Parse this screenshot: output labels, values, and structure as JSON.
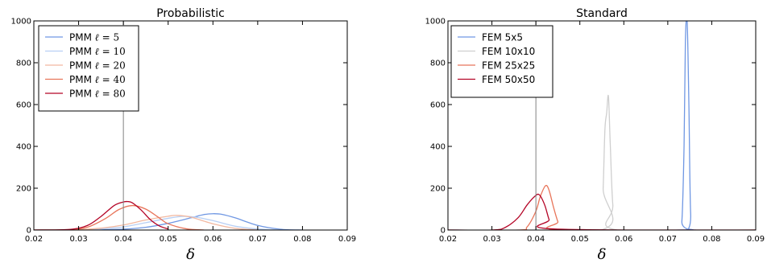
{
  "chart_data": [
    {
      "type": "line",
      "title": "Probabilistic",
      "xlabel": "δ",
      "ylabel": "",
      "xlim": [
        0.02,
        0.09
      ],
      "ylim": [
        0,
        1000
      ],
      "xticks": [
        "0.02",
        "0.03",
        "0.04",
        "0.05",
        "0.06",
        "0.07",
        "0.08",
        "0.09"
      ],
      "yticks": [
        "0",
        "200",
        "400",
        "600",
        "800",
        "1000"
      ],
      "grid": false,
      "legend_position": "top-left",
      "reference_line_x": 0.04,
      "reference_line_color": "#808080",
      "series": [
        {
          "name": "PMM ℓ = 5",
          "color": "#6f97e3",
          "x": [
            0.02,
            0.03,
            0.035,
            0.04,
            0.045,
            0.05,
            0.055,
            0.058,
            0.06,
            0.062,
            0.065,
            0.07,
            0.075,
            0.08
          ],
          "y": [
            0,
            0,
            1,
            4,
            13,
            32,
            58,
            74,
            78,
            75,
            58,
            22,
            4,
            0
          ]
        },
        {
          "name": "PMM ℓ = 10",
          "color": "#b8cff4",
          "x": [
            0.02,
            0.03,
            0.035,
            0.04,
            0.045,
            0.05,
            0.053,
            0.056,
            0.06,
            0.065,
            0.07,
            0.075
          ],
          "y": [
            0,
            1,
            5,
            15,
            35,
            56,
            65,
            62,
            45,
            18,
            5,
            0
          ]
        },
        {
          "name": "PMM ℓ = 20",
          "color": "#f2b8a0",
          "x": [
            0.02,
            0.03,
            0.035,
            0.04,
            0.045,
            0.05,
            0.052,
            0.055,
            0.06,
            0.065,
            0.07
          ],
          "y": [
            0,
            2,
            9,
            24,
            48,
            66,
            70,
            62,
            30,
            8,
            0
          ]
        },
        {
          "name": "PMM ℓ = 40",
          "color": "#e8755a",
          "x": [
            0.02,
            0.028,
            0.032,
            0.036,
            0.039,
            0.042,
            0.045,
            0.048,
            0.05,
            0.054,
            0.058
          ],
          "y": [
            0,
            2,
            14,
            55,
            98,
            117,
            100,
            58,
            30,
            6,
            0
          ]
        },
        {
          "name": "PMM ℓ = 80",
          "color": "#b40426",
          "x": [
            0.02,
            0.028,
            0.032,
            0.035,
            0.038,
            0.04,
            0.041,
            0.042,
            0.044,
            0.046,
            0.048,
            0.05
          ],
          "y": [
            0,
            3,
            22,
            65,
            118,
            134,
            136,
            130,
            95,
            50,
            20,
            5
          ]
        }
      ]
    },
    {
      "type": "line",
      "title": "Standard",
      "xlabel": "δ",
      "ylabel": "",
      "xlim": [
        0.02,
        0.09
      ],
      "ylim": [
        0,
        1000
      ],
      "xticks": [
        "0.02",
        "0.03",
        "0.04",
        "0.05",
        "0.06",
        "0.07",
        "0.08",
        "0.09"
      ],
      "yticks": [
        "0",
        "200",
        "400",
        "600",
        "800",
        "1000"
      ],
      "grid": false,
      "legend_position": "top-left",
      "reference_line_x": 0.04,
      "reference_line_color": "#808080",
      "series": [
        {
          "name": "FEM 5x5",
          "color": "#6f97e3",
          "x": [
            0.02,
            0.0725,
            0.0732,
            0.0737,
            0.074,
            0.0744,
            0.0748,
            0.0752,
            0.076,
            0.09
          ],
          "y": [
            0,
            0,
            40,
            400,
            900,
            1000,
            600,
            80,
            0,
            0
          ]
        },
        {
          "name": "FEM 10x10",
          "color": "#cfcfcf",
          "x": [
            0.02,
            0.0548,
            0.0553,
            0.0557,
            0.0561,
            0.0565,
            0.0569,
            0.0575,
            0.0585,
            0.09
          ],
          "y": [
            0,
            0,
            200,
            480,
            560,
            640,
            420,
            120,
            0,
            0
          ]
        },
        {
          "name": "FEM 25x25",
          "color": "#e8755a",
          "x": [
            0.02,
            0.036,
            0.038,
            0.04,
            0.041,
            0.0422,
            0.043,
            0.044,
            0.045,
            0.046,
            0.09
          ],
          "y": [
            0,
            0,
            15,
            90,
            160,
            212,
            190,
            110,
            40,
            0,
            0
          ]
        },
        {
          "name": "FEM 50x50",
          "color": "#b40426",
          "x": [
            0.02,
            0.03,
            0.033,
            0.036,
            0.038,
            0.0398,
            0.0408,
            0.042,
            0.043,
            0.044,
            0.09
          ],
          "y": [
            0,
            0,
            12,
            60,
            120,
            162,
            168,
            120,
            50,
            5,
            0
          ]
        }
      ]
    }
  ]
}
